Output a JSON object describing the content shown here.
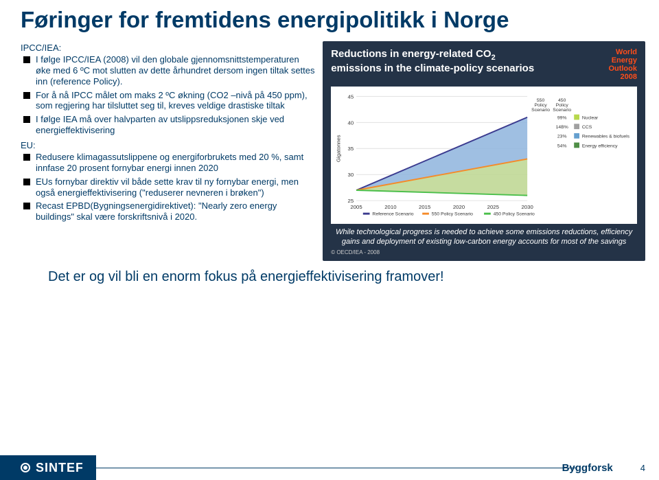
{
  "title": "Føringer for fremtidens energipolitikk i Norge",
  "section1_label": "IPCC/IEA:",
  "bullets1": [
    "I følge IPCC/IEA (2008) vil den globale gjennomsnittstemperaturen øke med 6 ºC mot slutten av dette århundret dersom ingen tiltak settes inn (reference Policy).",
    "For å nå IPCC målet om maks 2 ºC økning (CO2 –nivå på 450 ppm), som regjering har tilsluttet seg til, kreves veldige drastiske tiltak",
    "I følge IEA må over halvparten av utslippsreduksjonen skje ved energieffektivisering"
  ],
  "section2_label": "EU:",
  "bullets2": [
    "Redusere klimagassutslippene og energiforbrukets med 20 %, samt innfase 20 prosent fornybar energi  innen 2020",
    "EUs fornybar direktiv vil både sette krav til ny fornybar energi, men også energieffektivisering (\"reduserer nevneren i brøken\")",
    "Recast EPBD(Bygningsenergidirektivet): \"Nearly zero energy buildings\" skal være forskriftsnivå i 2020."
  ],
  "conclusion": "Det er og vil bli en enorm fokus på energieffektivisering framover!",
  "chart": {
    "title_line1": "Reductions in energy-related CO",
    "title_sub": "2",
    "title_line2": "emissions in the climate-policy scenarios",
    "badge": "World\nEnergy\nOutlook\n2008",
    "ylabel": "Gigatonnes",
    "ylim": [
      25,
      45
    ],
    "yticks": [
      25,
      30,
      35,
      40,
      45
    ],
    "xlim": [
      2005,
      2030
    ],
    "xticks": [
      2005,
      2010,
      2015,
      2020,
      2025,
      2030
    ],
    "series": [
      {
        "name": "Reference Scenario",
        "color": "#3b3b8f",
        "y2005": 27,
        "y2030": 41
      },
      {
        "name": "550 Policy Scenario",
        "color": "#f58b29",
        "y2005": 27,
        "y2030": 33
      },
      {
        "name": "450 Policy Scenario",
        "color": "#4abf4a",
        "y2005": 27,
        "y2030": 26
      }
    ],
    "wedge_labels": {
      "col550": "550\nPolicy\nScenario",
      "col450": "450\nPolicy\nScenario",
      "rows": [
        {
          "key": "Nuclear",
          "color": "#b7d84c",
          "v550": "",
          "v450": "99%"
        },
        {
          "key": "CCS",
          "color": "#a0a0a0",
          "v550": "",
          "v450": "14B%"
        },
        {
          "key": "Renewables & biofuels",
          "color": "#65a0cf",
          "v550": "",
          "v450": "23%"
        },
        {
          "key": "Energy efficiency",
          "color": "#4f8e46",
          "v550": "",
          "v450": "54%"
        }
      ]
    },
    "caption": "While technological progress is needed to achieve some emissions reductions, efficiency gains and deployment of existing low-carbon energy accounts for most of the savings",
    "credit": "© OECD/IEA - 2008",
    "background": "#243347",
    "plot_bg": "#ffffff",
    "grid_color": "#e0e0e0"
  },
  "footer": {
    "logo": "SINTEF",
    "brand": "Byggforsk",
    "page": "4"
  }
}
